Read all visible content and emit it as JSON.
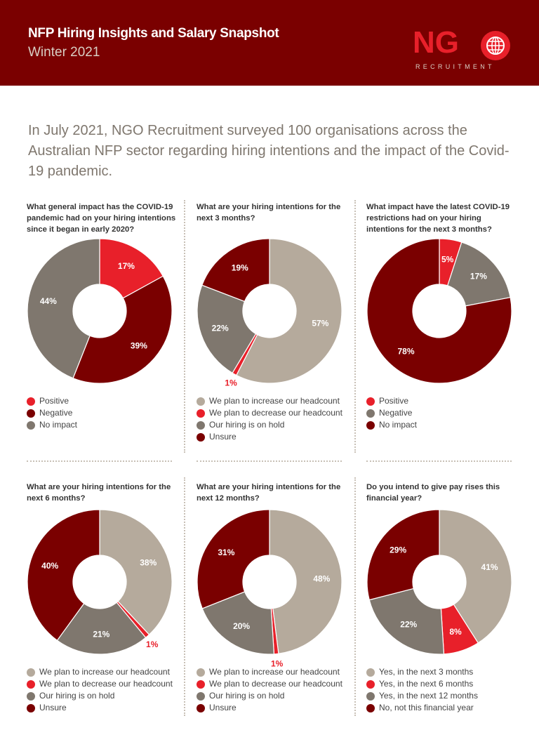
{
  "header": {
    "title": "NFP Hiring Insights and Salary Snapshot",
    "subtitle": "Winter 2021",
    "logo_text": "NGO RECRUITMENT"
  },
  "intro": "In July 2021, NGO Recruitment surveyed 100 organisations across the Australian NFP sector regarding hiring intentions and the impact of the Covid-19 pandemic.",
  "colors": {
    "header_bg": "#7a0000",
    "bright_red": "#e8202a",
    "dark_red": "#7a0000",
    "beige": "#b5aa9c",
    "gray": "#7f776e"
  },
  "chart_data": [
    {
      "type": "pie",
      "donut": true,
      "title": "What general impact has the COVID-19 pandemic had on your hiring intentions since it began in early 2020?",
      "categories": [
        "Positive",
        "Negative",
        "No impact"
      ],
      "values": [
        17,
        39,
        44
      ],
      "colors": [
        "#e8202a",
        "#7a0000",
        "#7f776e"
      ],
      "legend": "bottom"
    },
    {
      "type": "pie",
      "donut": true,
      "title": "What are your hiring intentions for the next 3 months?",
      "categories": [
        "We plan to increase our headcount",
        "We plan to decrease our headcount",
        "Our hiring is on hold",
        "Unsure"
      ],
      "values": [
        57,
        1,
        22,
        19
      ],
      "colors": [
        "#b5aa9c",
        "#e8202a",
        "#7f776e",
        "#7a0000"
      ],
      "legend": "bottom"
    },
    {
      "type": "pie",
      "donut": true,
      "title": "What impact have the latest COVID-19 restrictions had on your hiring intentions for the next 3 months?",
      "categories": [
        "Positive",
        "Negative",
        "No impact"
      ],
      "values": [
        5,
        17,
        78
      ],
      "colors": [
        "#e8202a",
        "#7f776e",
        "#7a0000"
      ],
      "legend": "bottom"
    },
    {
      "type": "pie",
      "donut": true,
      "title": "What are your hiring intentions for the next 6 months?",
      "categories": [
        "We plan to increase our headcount",
        "We plan to decrease our headcount",
        "Our hiring is on hold",
        "Unsure"
      ],
      "values": [
        38,
        1,
        21,
        40
      ],
      "colors": [
        "#b5aa9c",
        "#e8202a",
        "#7f776e",
        "#7a0000"
      ],
      "legend": "bottom"
    },
    {
      "type": "pie",
      "donut": true,
      "title": "What are your hiring intentions for the next 12 months?",
      "categories": [
        "We plan to increase our headcount",
        "We plan to decrease our headcount",
        "Our hiring is on hold",
        "Unsure"
      ],
      "values": [
        48,
        1,
        20,
        31
      ],
      "colors": [
        "#b5aa9c",
        "#e8202a",
        "#7f776e",
        "#7a0000"
      ],
      "legend": "bottom"
    },
    {
      "type": "pie",
      "donut": true,
      "title": "Do you intend to give pay rises this financial year?",
      "categories": [
        "Yes, in the next 3 months",
        "Yes, in the next 6 months",
        "Yes, in the next 12 months",
        "No, not this financial year"
      ],
      "values": [
        41,
        8,
        22,
        29
      ],
      "colors": [
        "#b5aa9c",
        "#e8202a",
        "#7f776e",
        "#7a0000"
      ],
      "legend": "bottom"
    }
  ]
}
